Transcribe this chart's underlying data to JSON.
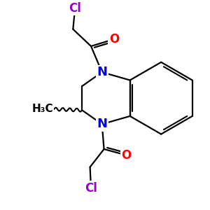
{
  "background_color": "#ffffff",
  "atom_colors": {
    "N": "#0000ff",
    "O": "#ff0000",
    "Cl": "#9900cc",
    "C": "#000000",
    "H": "#000000"
  },
  "bond_color": "#000000",
  "bond_width": 1.6,
  "figsize": [
    3.0,
    3.0
  ],
  "dpi": 100,
  "xlim": [
    0,
    10
  ],
  "ylim": [
    0,
    10
  ]
}
